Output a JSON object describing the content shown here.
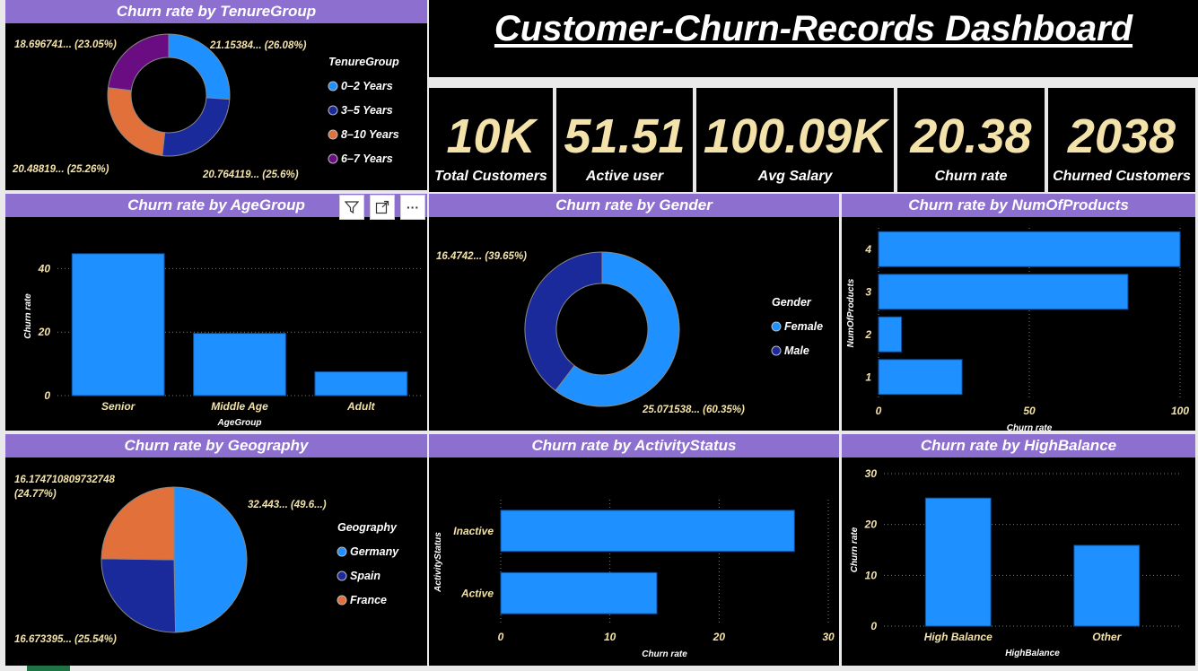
{
  "dashboard": {
    "title": "Customer-Churn-Records Dashboard"
  },
  "kpis": [
    {
      "value": "10K",
      "label": "Total Customers"
    },
    {
      "value": "51.51",
      "label": "Active user"
    },
    {
      "value": "100.09K",
      "label": "Avg Salary"
    },
    {
      "value": "20.38",
      "label": "Churn rate"
    },
    {
      "value": "2038",
      "label": "Churned Customers"
    }
  ],
  "toolbar": {
    "filter_icon": "filter-icon",
    "focus_icon": "expand-icon",
    "more_label": "···"
  },
  "colors": {
    "panel_title_bg": "#8c6fcf",
    "light_blue": "#1e90ff",
    "dark_blue": "#1a2a9a",
    "orange": "#e2703a",
    "purple": "#6a0d83",
    "kpi_value": "#f3e2a9",
    "label_yellow": "#f3e2a9"
  },
  "chart_data": [
    {
      "id": "tenure",
      "type": "pie",
      "donut": true,
      "title": "Churn rate by TenureGroup",
      "legend_title": "TenureGroup",
      "categories": [
        "0–2 Years",
        "3–5 Years",
        "8–10 Years",
        "6–7 Years"
      ],
      "values": [
        21.15384,
        20.764119,
        20.48819,
        18.696741
      ],
      "labels": [
        "21.15384... (26.08%)",
        "20.764119... (25.6%)",
        "20.48819... (25.26%)",
        "18.696741... (23.05%)"
      ],
      "colors": [
        "#1e90ff",
        "#1a2a9a",
        "#e2703a",
        "#6a0d83"
      ]
    },
    {
      "id": "age",
      "type": "bar",
      "title": "Churn rate by AgeGroup",
      "xlabel": "AgeGroup",
      "ylabel": "Churn rate",
      "categories": [
        "Senior",
        "Middle Age",
        "Adult"
      ],
      "values": [
        44.7,
        19.6,
        7.5
      ],
      "ylim": [
        0,
        50
      ],
      "yticks": [
        0,
        20,
        40
      ]
    },
    {
      "id": "gender",
      "type": "pie",
      "donut": true,
      "title": "Churn rate by Gender",
      "legend_title": "Gender",
      "categories": [
        "Female",
        "Male"
      ],
      "values": [
        25.071538,
        16.4742
      ],
      "labels": [
        "25.071538... (60.35%)",
        "16.4742... (39.65%)"
      ],
      "colors": [
        "#1e90ff",
        "#1a2a9a"
      ]
    },
    {
      "id": "products",
      "type": "bar",
      "orientation": "horizontal",
      "title": "Churn rate by NumOfProducts",
      "xlabel": "Churn rate",
      "ylabel": "NumOfProducts",
      "categories": [
        "4",
        "3",
        "2",
        "1"
      ],
      "values": [
        100,
        82.7,
        7.6,
        27.7
      ],
      "xlim": [
        0,
        100
      ],
      "xticks": [
        0,
        50,
        100
      ]
    },
    {
      "id": "geography",
      "type": "pie",
      "title": "Churn rate by Geography",
      "legend_title": "Geography",
      "categories": [
        "Germany",
        "Spain",
        "France"
      ],
      "values": [
        32.443,
        16.673395,
        16.174710809732748
      ],
      "labels": [
        "32.443... (49.6...)",
        "16.673395... (25.54%)",
        "16.174710809732748\n(24.77%)"
      ],
      "colors": [
        "#1e90ff",
        "#1a2a9a",
        "#e2703a"
      ]
    },
    {
      "id": "activity",
      "type": "bar",
      "orientation": "horizontal",
      "title": "Churn rate by ActivityStatus",
      "xlabel": "Churn rate",
      "ylabel": "ActivityStatus",
      "categories": [
        "Inactive",
        "Active"
      ],
      "values": [
        26.9,
        14.3
      ],
      "xlim": [
        0,
        30
      ],
      "xticks": [
        0,
        10,
        20,
        30
      ]
    },
    {
      "id": "highbalance",
      "type": "bar",
      "title": "Churn rate by HighBalance",
      "xlabel": "HighBalance",
      "ylabel": "Churn rate",
      "categories": [
        "High Balance",
        "Other"
      ],
      "values": [
        25.2,
        15.9
      ],
      "ylim": [
        0,
        30
      ],
      "yticks": [
        0,
        10,
        20,
        30
      ]
    }
  ]
}
